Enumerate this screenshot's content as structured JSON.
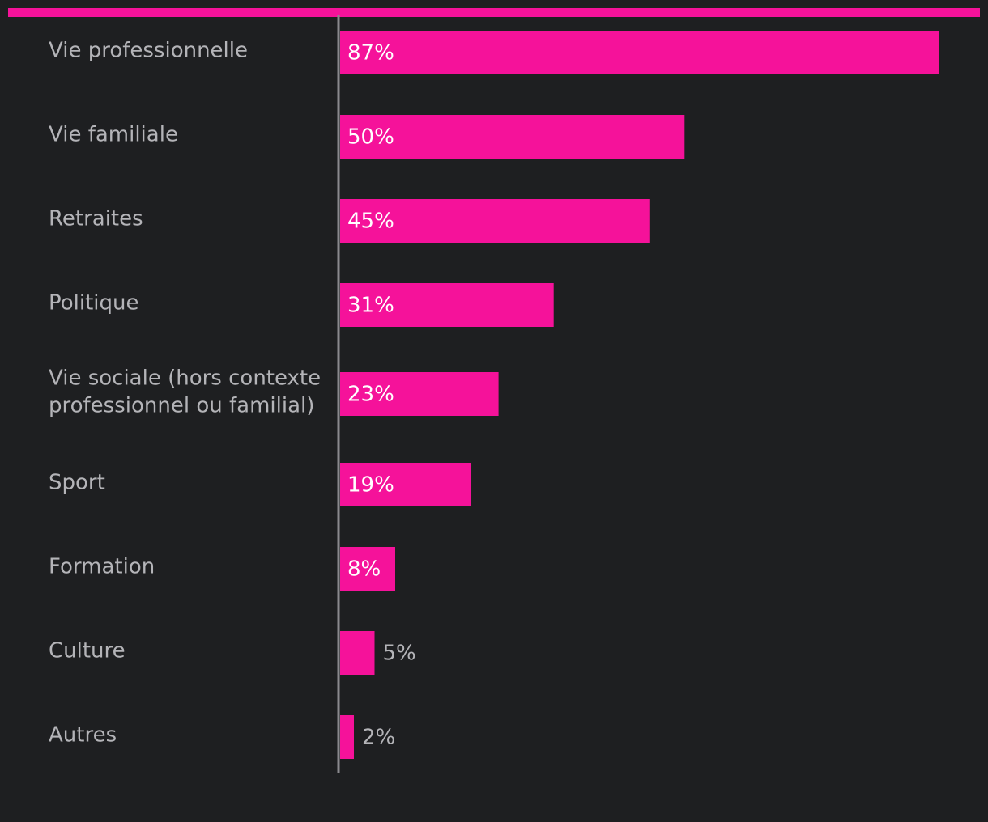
{
  "colors": {
    "background": "#1e1f21",
    "accent": "#f5129a",
    "axis": "#8a8a8e",
    "label_text": "#b4b4b8",
    "value_text_inside": "#ffffff",
    "value_text_outside": "#b4b4b8"
  },
  "chart_data": {
    "type": "bar",
    "orientation": "horizontal",
    "categories": [
      [
        "Vie professionnelle"
      ],
      [
        "Vie familiale"
      ],
      [
        "Retraites"
      ],
      [
        "Politique"
      ],
      [
        "Vie sociale (hors contexte",
        "professionnel ou familial)"
      ],
      [
        "Sport"
      ],
      [
        "Formation"
      ],
      [
        "Culture"
      ],
      [
        "Autres"
      ]
    ],
    "values": [
      87,
      50,
      45,
      31,
      23,
      19,
      8,
      5,
      2
    ],
    "value_labels": [
      "87%",
      "50%",
      "45%",
      "31%",
      "23%",
      "19%",
      "8%",
      "5%",
      "2%"
    ],
    "unit": "%",
    "xlim": [
      0,
      100
    ],
    "grid": false,
    "legend": "none"
  }
}
